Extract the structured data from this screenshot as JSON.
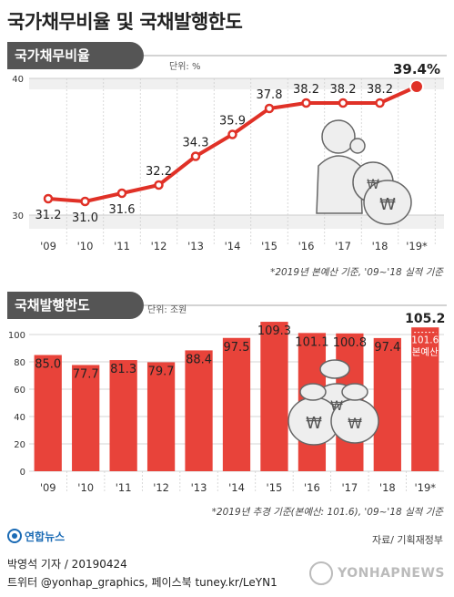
{
  "title": "국가채무비율 및 국채발행한도",
  "colors": {
    "accent": "#e03127",
    "bar": "#e8433a",
    "gray": "#555555"
  },
  "section1": {
    "label": "국가채무비율",
    "unit": "단위: %",
    "note": "*2019년 본예산 기준, '09~'18 실적 기준"
  },
  "section2": {
    "label": "국채발행한도",
    "unit": "단위: 조원",
    "note": "*2019년 추경 기준(본예산: 101.6), '09~'18 실적 기준"
  },
  "chart_data": [
    {
      "type": "line",
      "title": "국가채무비율",
      "unit": "%",
      "categories": [
        "'09",
        "'10",
        "'11",
        "'12",
        "'13",
        "'14",
        "'15",
        "'16",
        "'17",
        "'18",
        "'19*"
      ],
      "values": [
        31.2,
        31.0,
        31.6,
        32.2,
        34.3,
        35.9,
        37.8,
        38.2,
        38.2,
        38.2,
        39.4
      ],
      "value_labels": [
        "31.2",
        "31.0",
        "31.6",
        "32.2",
        "34.3",
        "35.9",
        "37.8",
        "38.2",
        "38.2",
        "38.2",
        "39.4%"
      ],
      "yticks": [
        "30",
        "40"
      ],
      "ylim": [
        29,
        40
      ]
    },
    {
      "type": "bar",
      "title": "국채발행한도",
      "unit": "조원",
      "categories": [
        "'09",
        "'10",
        "'11",
        "'12",
        "'13",
        "'14",
        "'15",
        "'16",
        "'17",
        "'18",
        "'19*"
      ],
      "values": [
        85.0,
        77.7,
        81.3,
        79.7,
        88.4,
        97.5,
        109.3,
        101.1,
        100.8,
        97.4,
        105.2
      ],
      "value_labels": [
        "85.0",
        "77.7",
        "81.3",
        "79.7",
        "88.4",
        "97.5",
        "109.3",
        "101.1",
        "100.8",
        "97.4",
        "105.2"
      ],
      "inner_label": {
        "value": "101.6",
        "text": "본예산"
      },
      "yticks": [
        "0",
        "20",
        "40",
        "60",
        "80",
        "100"
      ],
      "ylim": [
        0,
        110
      ]
    }
  ],
  "footer": {
    "source": "자료/ 기획재정부",
    "logo_text": "연합뉴스",
    "byline": "박영석 기자 / 20190424",
    "social": "트위터 @yonhap_graphics, 페이스북 tuney.kr/LeYN1",
    "brand": "YONHAPNEWS"
  }
}
